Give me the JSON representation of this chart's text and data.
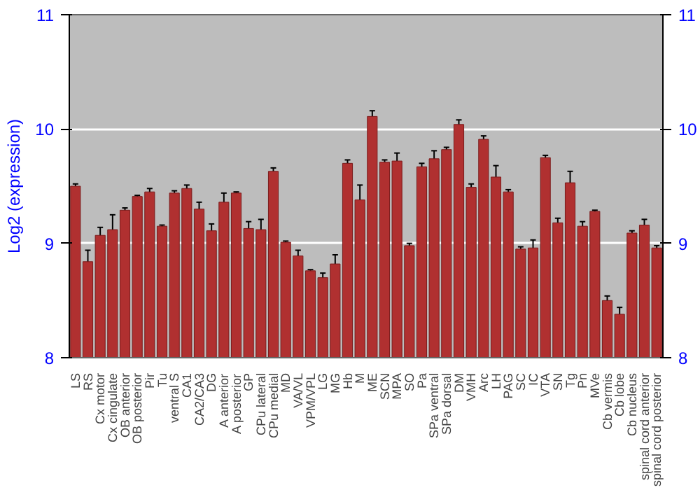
{
  "chart_data": {
    "type": "bar",
    "ylabel": "Log2 (expression)",
    "categories": [
      "LS",
      "RS",
      "Cx motor",
      "Cx cingulate",
      "OB anterior",
      "OB posterior",
      "Pir",
      "Tu",
      "ventral S",
      "CA1",
      "CA2/CA3",
      "DG",
      "A anterior",
      "A posterior",
      "GP",
      "CPu lateral",
      "CPu medial",
      "MD",
      "VA/VL",
      "VPM/VPL",
      "LG",
      "MG",
      "Hb",
      "M",
      "ME",
      "SCN",
      "MPA",
      "SO",
      "Pa",
      "SPa ventral",
      "SPa dorsal",
      "DM",
      "VMH",
      "Arc",
      "LH",
      "PAG",
      "SC",
      "IC",
      "VTA",
      "SN",
      "Tg",
      "Pn",
      "MVe",
      "Cb vermis",
      "Cb lobe",
      "Cb nucleus",
      "spinal cord anterior",
      "spinal cord posterior"
    ],
    "values": [
      9.5,
      8.84,
      9.07,
      9.12,
      9.29,
      9.41,
      9.45,
      9.15,
      9.44,
      9.48,
      9.3,
      9.11,
      9.36,
      9.44,
      9.13,
      9.12,
      9.63,
      9.01,
      8.89,
      8.76,
      8.7,
      8.82,
      9.7,
      9.38,
      10.11,
      9.71,
      9.72,
      8.98,
      9.67,
      9.74,
      9.82,
      10.04,
      9.49,
      9.91,
      9.58,
      9.45,
      8.95,
      8.96,
      9.75,
      9.18,
      9.53,
      9.15,
      9.28,
      8.5,
      8.38,
      9.09,
      9.16,
      8.96
    ],
    "errors": [
      0.02,
      0.1,
      0.07,
      0.13,
      0.02,
      0.01,
      0.03,
      0.01,
      0.02,
      0.03,
      0.06,
      0.06,
      0.08,
      0.01,
      0.06,
      0.09,
      0.03,
      0.01,
      0.05,
      0.01,
      0.04,
      0.08,
      0.03,
      0.13,
      0.05,
      0.02,
      0.07,
      0.02,
      0.03,
      0.07,
      0.02,
      0.04,
      0.03,
      0.03,
      0.1,
      0.02,
      0.02,
      0.07,
      0.02,
      0.04,
      0.1,
      0.04,
      0.01,
      0.04,
      0.06,
      0.02,
      0.05,
      0.02
    ],
    "color": "#b03030",
    "ylim": [
      8,
      11
    ],
    "yticks": [
      8,
      9,
      10,
      11
    ],
    "y2lim": [
      8,
      11
    ],
    "y2ticks": [
      8,
      9,
      10,
      11
    ],
    "grid": "y"
  }
}
